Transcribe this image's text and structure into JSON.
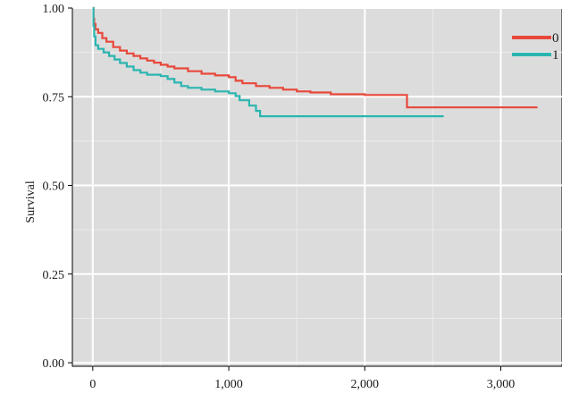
{
  "chart_data": {
    "type": "line",
    "step": true,
    "title": "",
    "xlabel": "",
    "ylabel": "Survival",
    "xlim": [
      -150,
      3450
    ],
    "ylim": [
      -0.01,
      1.0
    ],
    "grid": true,
    "legend_position": "top-right",
    "x_ticks": [
      {
        "value": 0,
        "label": "0"
      },
      {
        "value": 1000,
        "label": "1,000"
      },
      {
        "value": 2000,
        "label": "2,000"
      },
      {
        "value": 3000,
        "label": "3,000"
      }
    ],
    "y_ticks": [
      {
        "value": 0,
        "label": "0.00"
      },
      {
        "value": 0.25,
        "label": "0.25"
      },
      {
        "value": 0.5,
        "label": "0.50"
      },
      {
        "value": 0.75,
        "label": "0.75"
      },
      {
        "value": 1.0,
        "label": "1.00"
      }
    ],
    "series": [
      {
        "name": "0",
        "color": "#e8483b",
        "points": [
          [
            0,
            1.0
          ],
          [
            5,
            0.97
          ],
          [
            10,
            0.955
          ],
          [
            20,
            0.94
          ],
          [
            40,
            0.93
          ],
          [
            70,
            0.915
          ],
          [
            100,
            0.905
          ],
          [
            150,
            0.89
          ],
          [
            200,
            0.88
          ],
          [
            250,
            0.872
          ],
          [
            300,
            0.865
          ],
          [
            350,
            0.858
          ],
          [
            400,
            0.852
          ],
          [
            450,
            0.846
          ],
          [
            500,
            0.84
          ],
          [
            550,
            0.835
          ],
          [
            600,
            0.83
          ],
          [
            700,
            0.822
          ],
          [
            800,
            0.815
          ],
          [
            900,
            0.81
          ],
          [
            1000,
            0.805
          ],
          [
            1050,
            0.795
          ],
          [
            1100,
            0.788
          ],
          [
            1200,
            0.78
          ],
          [
            1300,
            0.775
          ],
          [
            1400,
            0.77
          ],
          [
            1500,
            0.765
          ],
          [
            1600,
            0.762
          ],
          [
            1750,
            0.757
          ],
          [
            2000,
            0.755
          ],
          [
            2300,
            0.755
          ],
          [
            2310,
            0.72
          ],
          [
            3270,
            0.72
          ]
        ]
      },
      {
        "name": "1",
        "color": "#2bb5b0",
        "points": [
          [
            0,
            1.0
          ],
          [
            5,
            0.95
          ],
          [
            10,
            0.92
          ],
          [
            20,
            0.895
          ],
          [
            40,
            0.885
          ],
          [
            80,
            0.875
          ],
          [
            120,
            0.865
          ],
          [
            160,
            0.855
          ],
          [
            200,
            0.845
          ],
          [
            250,
            0.835
          ],
          [
            300,
            0.825
          ],
          [
            350,
            0.818
          ],
          [
            400,
            0.812
          ],
          [
            500,
            0.808
          ],
          [
            550,
            0.8
          ],
          [
            600,
            0.79
          ],
          [
            650,
            0.78
          ],
          [
            700,
            0.775
          ],
          [
            800,
            0.77
          ],
          [
            900,
            0.765
          ],
          [
            1000,
            0.76
          ],
          [
            1050,
            0.752
          ],
          [
            1080,
            0.74
          ],
          [
            1150,
            0.725
          ],
          [
            1200,
            0.71
          ],
          [
            1230,
            0.695
          ],
          [
            2580,
            0.695
          ]
        ]
      }
    ]
  }
}
